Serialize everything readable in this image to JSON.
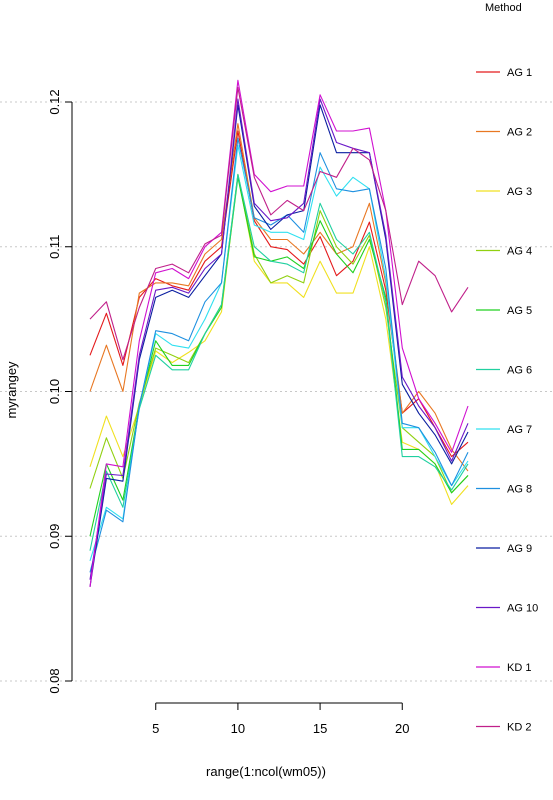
{
  "chart_data": {
    "type": "line",
    "title": "",
    "xlabel": "range(1:ncol(wm05))",
    "ylabel": "myrangey",
    "xlim": [
      1,
      24
    ],
    "ylim": [
      0.08,
      0.12
    ],
    "xticks": [
      5,
      10,
      15,
      20
    ],
    "xtick_labels": [
      "5",
      "10",
      "15",
      "20"
    ],
    "yticks": [
      0.08,
      0.09,
      0.1,
      0.11,
      0.12
    ],
    "ytick_labels": [
      "0.08",
      "0.09",
      "0.10",
      "0.11",
      "0.12"
    ],
    "grid": "horizontal dotted",
    "legend": {
      "title": "Method",
      "position": "right"
    },
    "x": [
      1,
      2,
      3,
      4,
      5,
      6,
      7,
      8,
      9,
      10,
      11,
      12,
      13,
      14,
      15,
      16,
      17,
      18,
      19,
      20,
      21,
      22,
      23,
      24
    ],
    "series": [
      {
        "name": "AG 1",
        "color": "#E41A1C",
        "values": [
          0.1025,
          0.1054,
          0.1018,
          0.1065,
          0.1078,
          0.1073,
          0.107,
          0.109,
          0.11,
          0.118,
          0.1118,
          0.11,
          0.1098,
          0.1088,
          0.1107,
          0.108,
          0.109,
          0.1117,
          0.107,
          0.0985,
          0.0995,
          0.0975,
          0.0955,
          0.0965
        ]
      },
      {
        "name": "AG 2",
        "color": "#E87722",
        "values": [
          0.1,
          0.1032,
          0.1,
          0.1068,
          0.1075,
          0.1075,
          0.1073,
          0.1095,
          0.1105,
          0.1185,
          0.112,
          0.1105,
          0.1105,
          0.1095,
          0.111,
          0.1095,
          0.11,
          0.113,
          0.1075,
          0.0985,
          0.1,
          0.0985,
          0.096,
          0.0945
        ]
      },
      {
        "name": "AG 3",
        "color": "#F0E020",
        "values": [
          0.0948,
          0.0983,
          0.0955,
          0.099,
          0.1028,
          0.102,
          0.1027,
          0.1035,
          0.1055,
          0.115,
          0.109,
          0.1075,
          0.1075,
          0.1065,
          0.109,
          0.1068,
          0.1068,
          0.11,
          0.105,
          0.0965,
          0.096,
          0.095,
          0.0922,
          0.0935
        ]
      },
      {
        "name": "AG 4",
        "color": "#90D010",
        "values": [
          0.0933,
          0.0968,
          0.094,
          0.0992,
          0.103,
          0.1025,
          0.102,
          0.104,
          0.106,
          0.115,
          0.1095,
          0.1075,
          0.108,
          0.1075,
          0.1125,
          0.11,
          0.1088,
          0.1108,
          0.1058,
          0.0975,
          0.0965,
          0.0955,
          0.093,
          0.0942
        ]
      },
      {
        "name": "AG 5",
        "color": "#20D020",
        "values": [
          0.09,
          0.095,
          0.0925,
          0.099,
          0.1035,
          0.1018,
          0.1018,
          0.104,
          0.1058,
          0.1148,
          0.1093,
          0.109,
          0.1093,
          0.1085,
          0.1118,
          0.1095,
          0.1082,
          0.1105,
          0.1065,
          0.096,
          0.096,
          0.095,
          0.093,
          0.0942
        ]
      },
      {
        "name": "AG 6",
        "color": "#20D0A0",
        "values": [
          0.089,
          0.0945,
          0.092,
          0.0988,
          0.1025,
          0.1015,
          0.1015,
          0.104,
          0.106,
          0.115,
          0.11,
          0.109,
          0.1088,
          0.1082,
          0.113,
          0.1105,
          0.1095,
          0.111,
          0.1062,
          0.0955,
          0.0955,
          0.0948,
          0.0932,
          0.095
        ]
      },
      {
        "name": "AG 7",
        "color": "#30E0F0",
        "values": [
          0.0883,
          0.092,
          0.0912,
          0.099,
          0.104,
          0.1032,
          0.103,
          0.105,
          0.1075,
          0.117,
          0.1115,
          0.111,
          0.111,
          0.1105,
          0.1155,
          0.1135,
          0.1148,
          0.114,
          0.1078,
          0.0975,
          0.0975,
          0.0955,
          0.0935,
          0.0952
        ]
      },
      {
        "name": "AG 8",
        "color": "#1E90E0",
        "values": [
          0.0875,
          0.0918,
          0.091,
          0.099,
          0.1042,
          0.104,
          0.1035,
          0.1062,
          0.1075,
          0.1175,
          0.112,
          0.1115,
          0.1122,
          0.111,
          0.1165,
          0.114,
          0.1138,
          0.114,
          0.1085,
          0.0978,
          0.0975,
          0.0958,
          0.0935,
          0.0958
        ]
      },
      {
        "name": "AG 9",
        "color": "#0A1EA0",
        "values": [
          0.0865,
          0.094,
          0.0938,
          0.1022,
          0.1065,
          0.107,
          0.1065,
          0.108,
          0.1095,
          0.1198,
          0.1128,
          0.1112,
          0.1122,
          0.1125,
          0.1198,
          0.1165,
          0.1165,
          0.1165,
          0.1105,
          0.1005,
          0.0985,
          0.097,
          0.095,
          0.0972
        ]
      },
      {
        "name": "AG 10",
        "color": "#6A18C8",
        "values": [
          0.087,
          0.0943,
          0.0942,
          0.1025,
          0.107,
          0.1072,
          0.1068,
          0.1085,
          0.1095,
          0.1202,
          0.113,
          0.1118,
          0.112,
          0.113,
          0.1202,
          0.1172,
          0.1168,
          0.1165,
          0.1108,
          0.101,
          0.099,
          0.0975,
          0.0952,
          0.0978
        ]
      },
      {
        "name": "KD 1",
        "color": "#D010D0",
        "values": [
          0.0865,
          0.095,
          0.0948,
          0.1035,
          0.1082,
          0.1085,
          0.1078,
          0.11,
          0.111,
          0.1215,
          0.115,
          0.1138,
          0.1142,
          0.1142,
          0.1205,
          0.118,
          0.118,
          0.1182,
          0.1125,
          0.103,
          0.0995,
          0.0978,
          0.0958,
          0.099
        ]
      },
      {
        "name": "KD 2",
        "color": "#C0208A",
        "values": [
          0.105,
          0.1062,
          0.1022,
          0.1058,
          0.1085,
          0.1088,
          0.1082,
          0.1102,
          0.1108,
          0.121,
          0.1148,
          0.1122,
          0.1132,
          0.1125,
          0.1152,
          0.1148,
          0.1168,
          0.116,
          0.1125,
          0.106,
          0.109,
          0.108,
          0.1055,
          0.1072
        ]
      }
    ]
  }
}
